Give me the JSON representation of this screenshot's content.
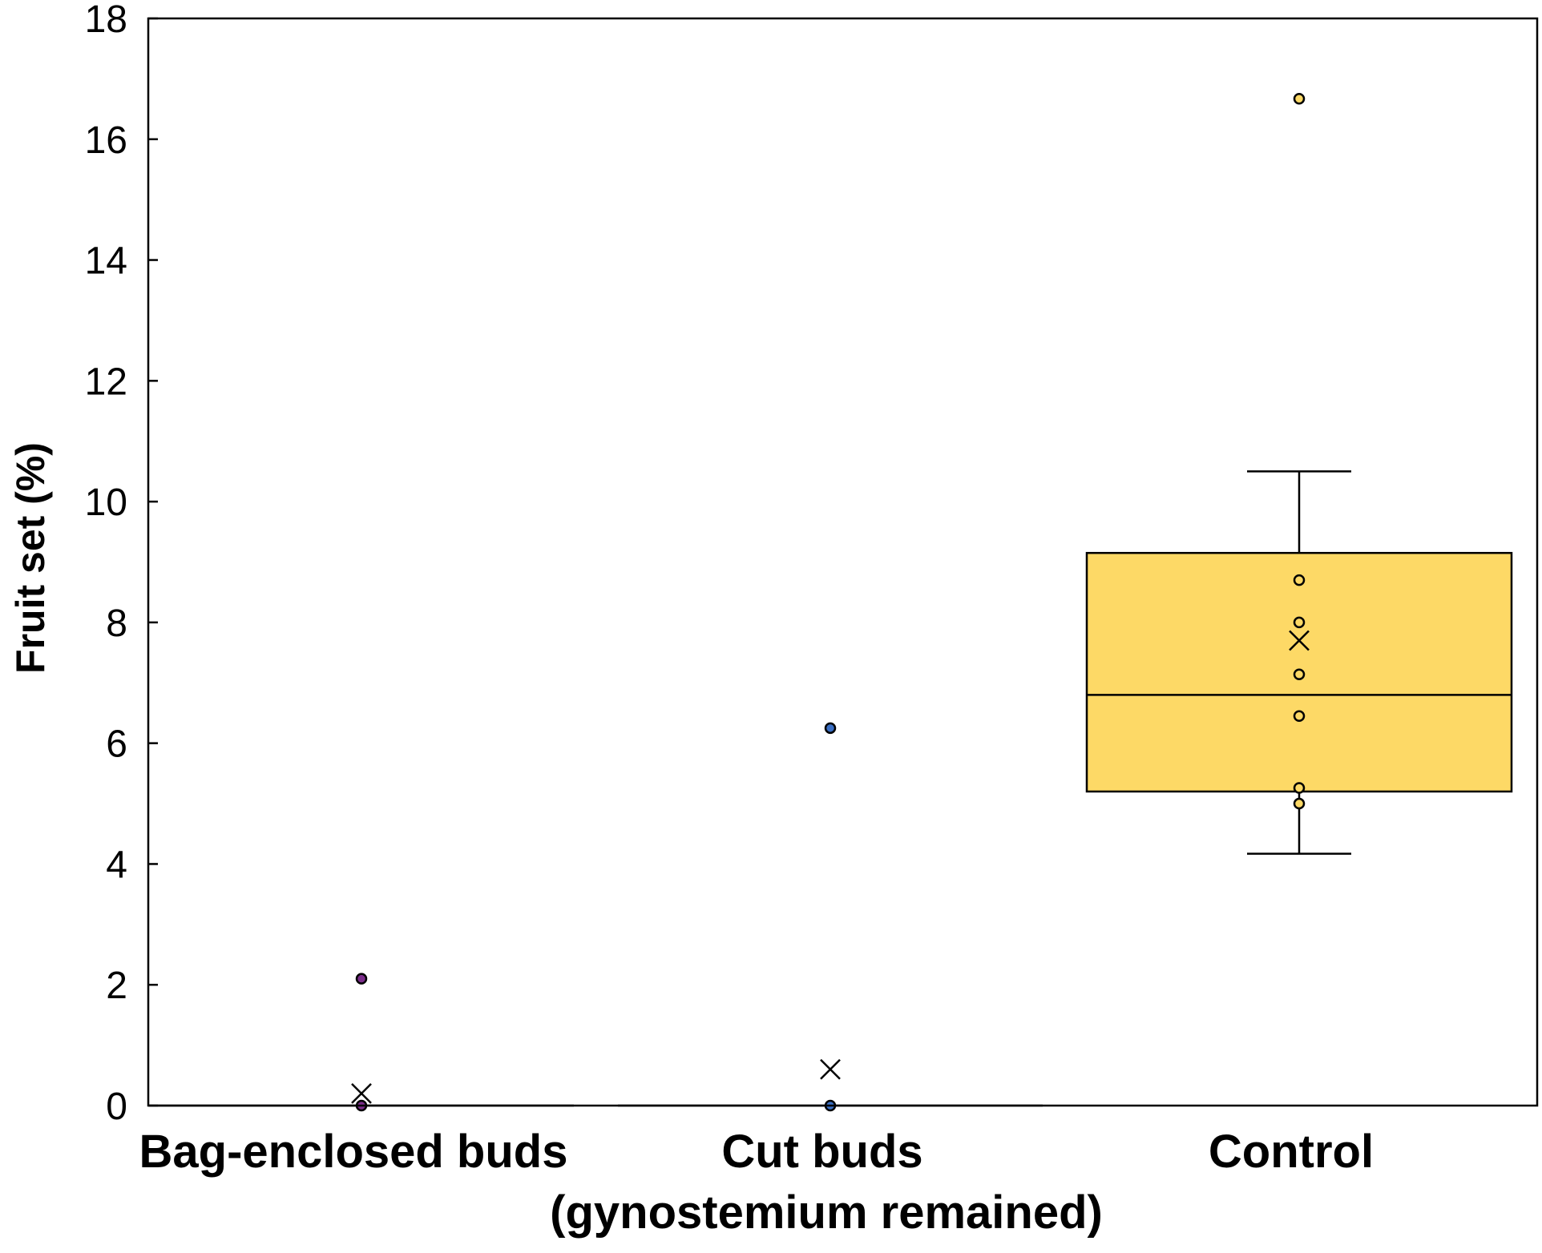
{
  "chart_data": {
    "type": "box",
    "title": "",
    "xlabel": "",
    "ylabel": "Fruit set (%)",
    "ylim": [
      0,
      18
    ],
    "y_ticks": [
      0,
      2,
      4,
      6,
      8,
      10,
      12,
      14,
      16,
      18
    ],
    "grid": false,
    "legend": "none",
    "categories": [
      "Bag-enclosed buds",
      "Cut buds\n(gynostemium remained)",
      "Control"
    ],
    "category_label_lines": [
      [
        "Bag-enclosed buds"
      ],
      [
        "Cut buds",
        "(gynostemium remained)"
      ],
      [
        "Control"
      ]
    ],
    "series": [
      {
        "category": "Bag-enclosed buds",
        "color": "#7b2d8b",
        "box_fill": null,
        "min": 0,
        "q1": 0,
        "median": 0,
        "q3": 0,
        "max": 0,
        "mean": 0.2,
        "points": [
          0,
          2.1
        ]
      },
      {
        "category": "Cut buds\n(gynostemium remained)",
        "color": "#3a6fc4",
        "box_fill": null,
        "min": 0,
        "q1": 0,
        "median": 0,
        "q3": 0,
        "max": 0,
        "mean": 0.6,
        "points": [
          0,
          6.25
        ]
      },
      {
        "category": "Control",
        "color": "#fdd966",
        "box_fill": "#fdd966",
        "min": 4.17,
        "q1": 5.2,
        "median": 6.8,
        "q3": 9.15,
        "max": 10.5,
        "mean": 7.7,
        "points": [
          5.0,
          5.26,
          6.45,
          7.14,
          8.0,
          8.7,
          16.67
        ]
      }
    ]
  }
}
